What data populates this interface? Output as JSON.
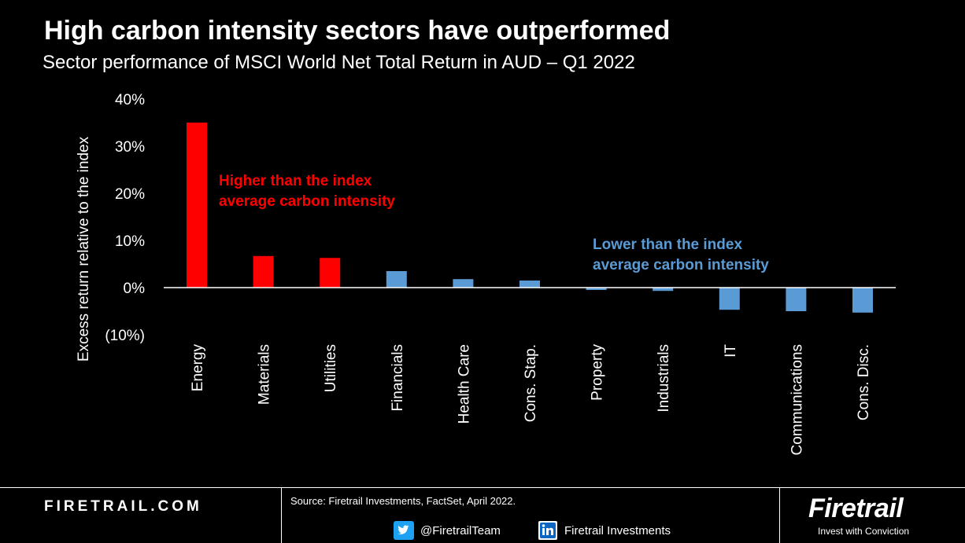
{
  "header": {
    "title": "High carbon intensity sectors have outperformed",
    "subtitle": "Sector performance of MSCI World Net Total Return in AUD – Q1 2022"
  },
  "chart_data": {
    "type": "bar",
    "title": "High carbon intensity sectors have outperformed",
    "subtitle": "Sector performance of MSCI World Net Total Return in AUD – Q1 2022",
    "xlabel": "",
    "ylabel": "Excess return relative to the index",
    "ylim": [
      -10,
      40
    ],
    "yticks": [
      40,
      30,
      20,
      10,
      0,
      -10
    ],
    "ytick_labels": [
      "40%",
      "30%",
      "20%",
      "10%",
      "0%",
      "(10%)"
    ],
    "grid": false,
    "categories": [
      "Energy",
      "Materials",
      "Utilities",
      "Financials",
      "Health Care",
      "Cons. Stap.",
      "Property",
      "Industrials",
      "IT",
      "Communications",
      "Cons. Disc."
    ],
    "values": [
      35,
      6.7,
      6.3,
      3.5,
      1.8,
      1.5,
      -0.5,
      -0.7,
      -4.7,
      -5.0,
      -5.3
    ],
    "groups": [
      "high",
      "high",
      "high",
      "low",
      "low",
      "low",
      "low",
      "low",
      "low",
      "low",
      "low"
    ],
    "colors": {
      "high": "#ff0000",
      "low": "#5b9bd5"
    },
    "annotations": [
      {
        "group": "high",
        "lines": [
          "Higher than the index",
          "average carbon intensity"
        ]
      },
      {
        "group": "low",
        "lines": [
          "Lower than the index",
          "average carbon intensity"
        ]
      }
    ]
  },
  "footer": {
    "site": "FIRETRAIL.COM",
    "source": "Source: Firetrail Investments, FactSet, April 2022.",
    "twitter": {
      "icon": "twitter-icon",
      "handle": "@FiretrailTeam"
    },
    "linkedin": {
      "icon": "linkedin-icon",
      "label": "Firetrail Investments"
    },
    "brand": {
      "name": "Firetrail",
      "tagline": "Invest with Conviction"
    }
  }
}
